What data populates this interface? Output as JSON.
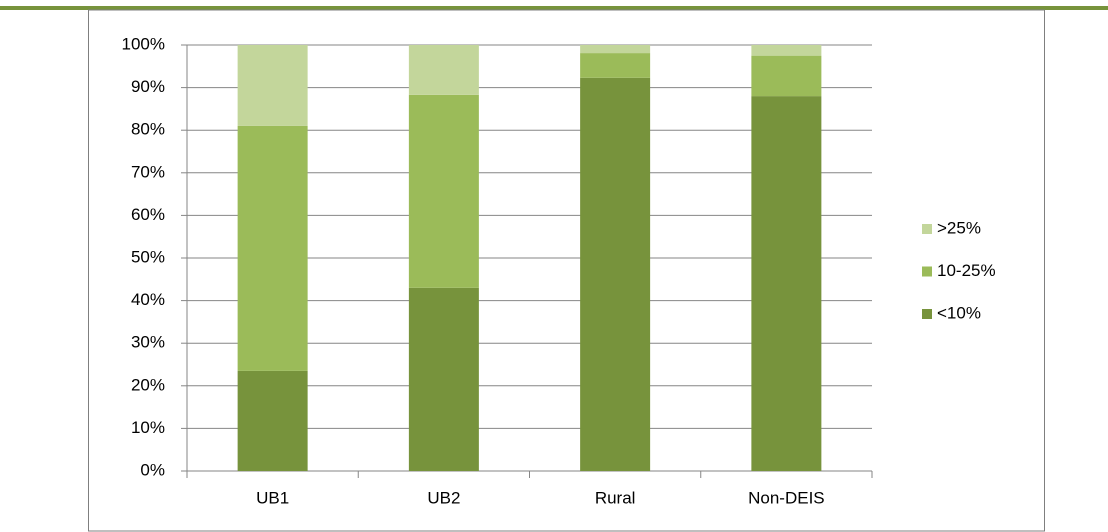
{
  "chart_data": {
    "type": "stacked-bar",
    "categories": [
      "UB1",
      "UB2",
      "Rural",
      "Non-DEIS"
    ],
    "series": [
      {
        "name": "<10%",
        "color": "#77933c",
        "values": [
          23.5,
          43,
          92.3,
          88
        ]
      },
      {
        "name": "10-25%",
        "color": "#9bbb59",
        "values": [
          57.5,
          45.3,
          5.8,
          9.5
        ]
      },
      {
        "name": ">25%",
        "color": "#c3d69b",
        "values": [
          19,
          11.7,
          1.9,
          2.5
        ]
      }
    ],
    "ylim": [
      0,
      100
    ],
    "yticks": [
      {
        "value": 0,
        "label": "0%"
      },
      {
        "value": 10,
        "label": "10%"
      },
      {
        "value": 20,
        "label": "20%"
      },
      {
        "value": 30,
        "label": "30%"
      },
      {
        "value": 40,
        "label": "40%"
      },
      {
        "value": 50,
        "label": "50%"
      },
      {
        "value": 60,
        "label": "60%"
      },
      {
        "value": 70,
        "label": "70%"
      },
      {
        "value": 80,
        "label": "80%"
      },
      {
        "value": 90,
        "label": "90%"
      },
      {
        "value": 100,
        "label": "100%"
      }
    ],
    "grid": true,
    "legend": "right"
  }
}
